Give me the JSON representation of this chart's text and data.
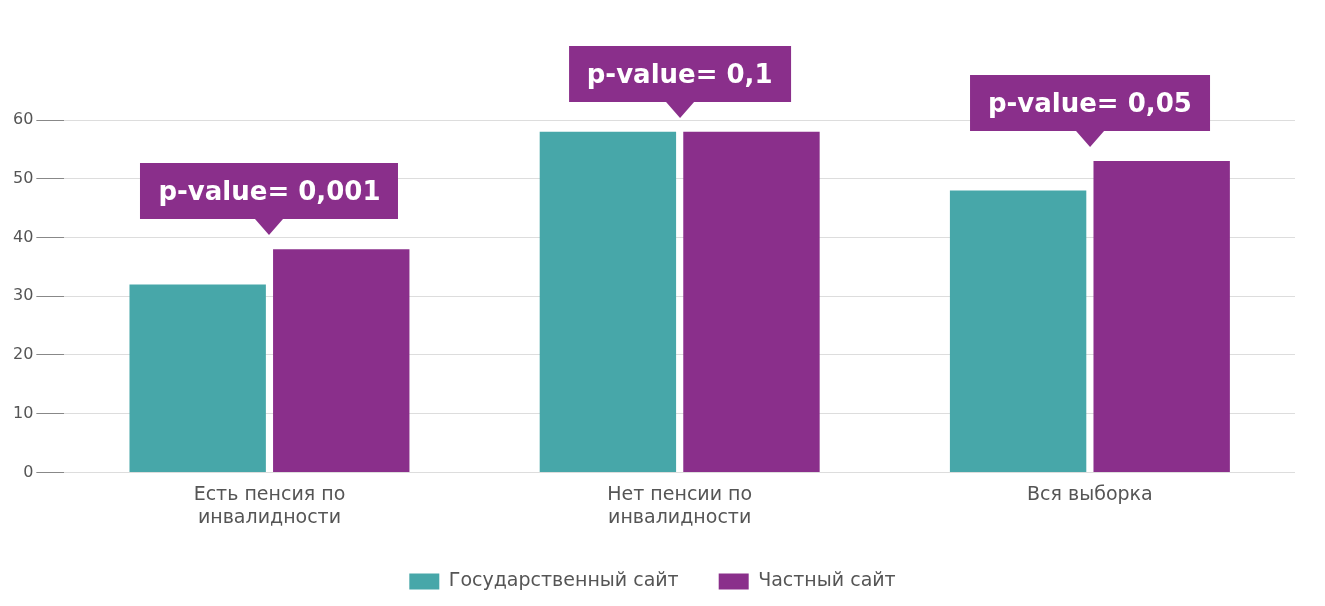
{
  "chart_data": {
    "type": "bar",
    "categories": [
      "Есть пенсия по инвалидности",
      "Нет пенсии по инвалидности",
      "Вся выборка"
    ],
    "series": [
      {
        "name": "Государственный сайт",
        "color": "#47a7a9",
        "values": [
          32,
          58,
          48
        ]
      },
      {
        "name": "Частный сайт",
        "color": "#8a2f8b",
        "values": [
          38,
          58,
          53
        ]
      }
    ],
    "ylim": [
      0,
      60
    ],
    "yticks": [
      0,
      10,
      20,
      30,
      40,
      50,
      60
    ],
    "grid": "y",
    "legend": "bottom",
    "annotations": [
      "p-value= 0,001",
      "p-value= 0,1",
      "p-value= 0,05"
    ]
  }
}
